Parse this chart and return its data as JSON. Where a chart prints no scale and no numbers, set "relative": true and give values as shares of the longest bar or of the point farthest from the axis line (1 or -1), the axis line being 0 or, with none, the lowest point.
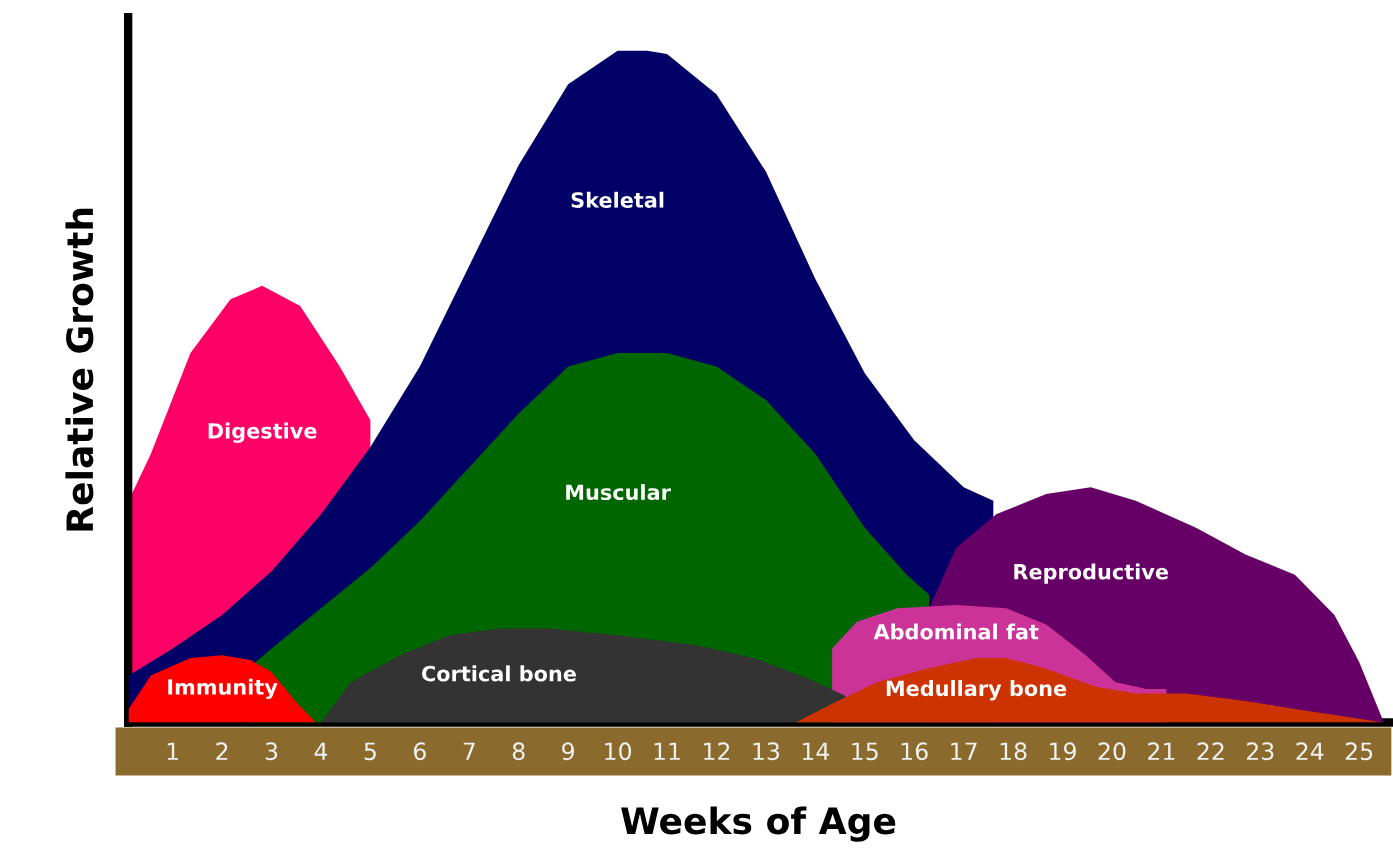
{
  "chart_data": {
    "type": "area",
    "relative": true,
    "xlabel": "Weeks of Age",
    "ylabel": "Relative Growth",
    "xlim": [
      0.1,
      25.6
    ],
    "xticks": [
      1,
      2,
      3,
      4,
      5,
      6,
      7,
      8,
      9,
      10,
      11,
      12,
      13,
      14,
      15,
      16,
      17,
      18,
      19,
      20,
      21,
      22,
      23,
      24,
      25
    ],
    "grid": false,
    "series": [
      {
        "name": "Digestive",
        "color": "#ff0066",
        "x": [
          0.11,
          0.56,
          1.36,
          2.17,
          2.81,
          3.58,
          4.38,
          5.0
        ],
        "values": [
          0.33,
          0.4,
          0.55,
          0.63,
          0.65,
          0.62,
          0.53,
          0.45
        ]
      },
      {
        "name": "Skeletal",
        "color": "#000066",
        "x": [
          0.11,
          1,
          2,
          3,
          4,
          5,
          6,
          7,
          8,
          9,
          10,
          10.6,
          11,
          12,
          13,
          14,
          15,
          16,
          17,
          17.6
        ],
        "values": [
          0.07,
          0.11,
          0.16,
          0.225,
          0.31,
          0.41,
          0.53,
          0.68,
          0.83,
          0.95,
          1.0,
          1.0,
          0.995,
          0.935,
          0.82,
          0.66,
          0.52,
          0.42,
          0.35,
          0.33
        ]
      },
      {
        "name": "Muscular",
        "color": "#006600",
        "x": [
          2.6,
          3,
          4,
          5,
          6,
          7,
          8,
          9,
          10,
          11,
          12,
          13,
          14,
          15,
          15.85,
          16.3
        ],
        "values": [
          0.085,
          0.11,
          0.17,
          0.23,
          0.3,
          0.38,
          0.46,
          0.53,
          0.55,
          0.55,
          0.53,
          0.48,
          0.4,
          0.29,
          0.22,
          0.19
        ]
      },
      {
        "name": "Reproductive",
        "color": "#660066",
        "x": [
          16.3,
          16.85,
          17.66,
          18.67,
          19.57,
          20.48,
          21.7,
          22.7,
          23.7,
          24.5,
          25,
          25.5
        ],
        "values": [
          0.17,
          0.26,
          0.31,
          0.34,
          0.35,
          0.33,
          0.29,
          0.25,
          0.22,
          0.16,
          0.09,
          0
        ]
      },
      {
        "name": "Abdominal fat",
        "color": "#cc3399",
        "x": [
          14.34,
          14.84,
          15.65,
          16.85,
          17.86,
          18.67,
          19.47,
          20.07,
          20.7,
          21.1
        ],
        "values": [
          0.11,
          0.15,
          0.17,
          0.175,
          0.17,
          0.146,
          0.1,
          0.06,
          0.05,
          0.05
        ]
      },
      {
        "name": "Cortical bone",
        "color": "#333333",
        "x": [
          4.0,
          4.6,
          5.6,
          6.6,
          7.6,
          8.6,
          10,
          11.6,
          12.8,
          13.8,
          14.6
        ],
        "values": [
          0,
          0.06,
          0.1,
          0.13,
          0.14,
          0.14,
          0.13,
          0.115,
          0.095,
          0.067,
          0.04
        ]
      },
      {
        "name": "Immunity",
        "color": "#ff0000",
        "x": [
          0.11,
          0.56,
          1.36,
          2,
          2.57,
          3,
          3.5,
          3.9
        ],
        "values": [
          0.02,
          0.07,
          0.096,
          0.1,
          0.093,
          0.075,
          0.03,
          0
        ]
      },
      {
        "name": "Medullary bone",
        "color": "#cc3300",
        "x": [
          13.6,
          14.4,
          15.25,
          16.25,
          17.25,
          17.86,
          18.67,
          19.67,
          20.48,
          21.5,
          22.7,
          23.7,
          25.5
        ],
        "values": [
          0,
          0.03,
          0.06,
          0.08,
          0.096,
          0.096,
          0.08,
          0.053,
          0.043,
          0.043,
          0.032,
          0.02,
          0
        ]
      }
    ]
  }
}
